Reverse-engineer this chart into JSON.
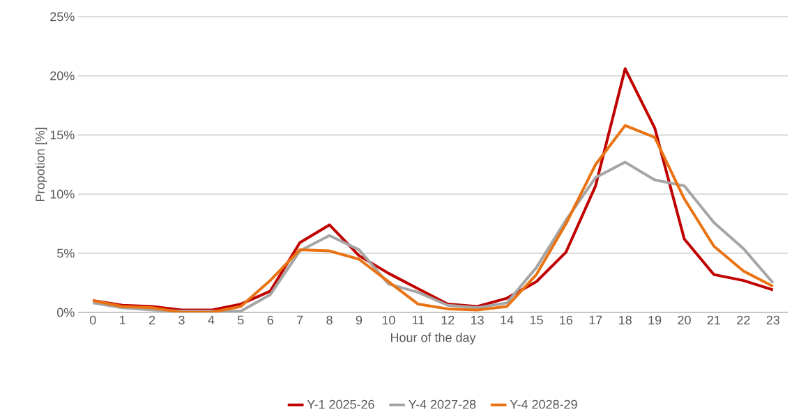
{
  "chart_data": {
    "type": "line",
    "xlabel": "Hour of the day",
    "ylabel": "Propotion [%]",
    "categories": [
      "0",
      "1",
      "2",
      "3",
      "4",
      "5",
      "6",
      "7",
      "8",
      "9",
      "10",
      "11",
      "12",
      "13",
      "14",
      "15",
      "16",
      "17",
      "18",
      "19",
      "20",
      "21",
      "22",
      "23"
    ],
    "series": [
      {
        "name": "Y-1 2025-26",
        "color": "#c00000",
        "values": [
          1.0,
          0.6,
          0.5,
          0.2,
          0.2,
          0.7,
          1.8,
          5.9,
          7.4,
          4.8,
          3.3,
          2.0,
          0.7,
          0.5,
          1.2,
          2.6,
          5.1,
          10.7,
          20.6,
          15.6,
          6.2,
          3.2,
          2.7,
          1.9
        ]
      },
      {
        "name": "Y-4 2027-28",
        "color": "#a5a5a5",
        "values": [
          0.8,
          0.4,
          0.2,
          0.1,
          0.1,
          0.1,
          1.5,
          5.2,
          6.5,
          5.3,
          2.4,
          1.7,
          0.6,
          0.4,
          0.8,
          3.8,
          7.8,
          11.4,
          12.7,
          11.2,
          10.7,
          7.6,
          5.4,
          2.5
        ]
      },
      {
        "name": "Y-4 2028-29",
        "color": "#e97313",
        "values": [
          1.0,
          0.5,
          0.4,
          0.0,
          0.0,
          0.5,
          2.7,
          5.3,
          5.2,
          4.5,
          2.6,
          0.7,
          0.3,
          0.2,
          0.5,
          3.2,
          7.5,
          12.5,
          15.8,
          14.8,
          9.6,
          5.6,
          3.5,
          2.2
        ]
      }
    ],
    "ylim": [
      0,
      25
    ],
    "yticks": [
      {
        "value": 0,
        "label": "0%"
      },
      {
        "value": 5,
        "label": "5%"
      },
      {
        "value": 10,
        "label": "10%"
      },
      {
        "value": 15,
        "label": "15%"
      },
      {
        "value": 20,
        "label": "20%"
      },
      {
        "value": 25,
        "label": "25%"
      }
    ],
    "grid": "y",
    "legend": "bottom",
    "marker": "none",
    "line_style": "solid"
  }
}
